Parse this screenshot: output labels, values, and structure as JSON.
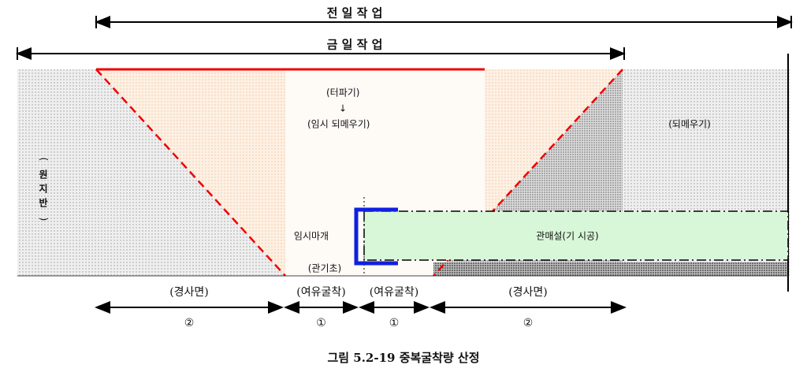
{
  "arrows": {
    "previous_day": "전 일 작 업",
    "today": "금 일 작 업"
  },
  "labels": {
    "excavation": "(터파기)",
    "arrow": "↓",
    "temp_backfill": "(임시 되메우기)",
    "backfill": "(되메우기)",
    "original_ground": [
      "(",
      "원",
      "지",
      "반",
      ")"
    ],
    "temp_cap": "임시마개",
    "pipe": "관매설(기 시공)",
    "pipe_base": "(관기초)"
  },
  "dimensions": [
    {
      "label": "(경사면)",
      "mark": "②"
    },
    {
      "label": "(여유굴착)",
      "mark": "①"
    },
    {
      "label": "(여유굴착)",
      "mark": "①"
    },
    {
      "label": "(경사면)",
      "mark": "②"
    }
  ],
  "caption": "그림 5.2-19 중복굴착량 산정"
}
